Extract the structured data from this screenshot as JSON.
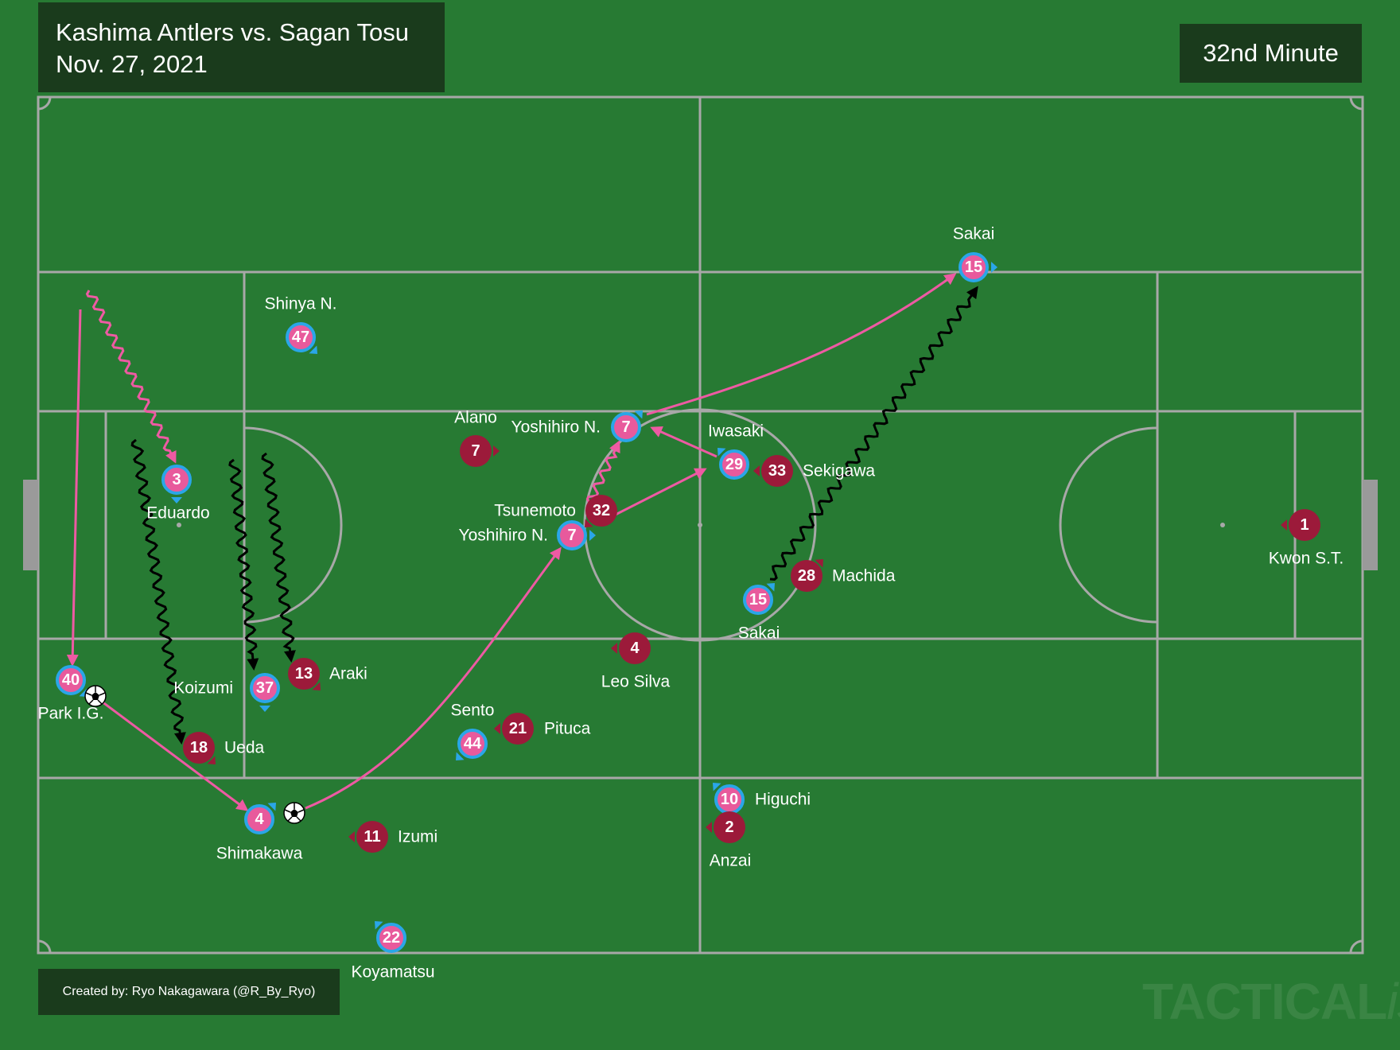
{
  "header": {
    "match": "Kashima Antlers vs. Sagan Tosu",
    "date": "Nov. 27, 2021",
    "minute": "32nd Minute"
  },
  "footer": {
    "credit": "Created by: Ryo Nakagawara (@R_By_Ryo)",
    "watermark_main": "TACTICAL",
    "watermark_italic": "ista"
  },
  "colors": {
    "pitch": "#277a33",
    "lines": "#a8a8a8",
    "home_fill": "#e85a9c",
    "home_ring": "#2aa6e8",
    "away_fill": "#9c1a3a",
    "pass_arrow": "#ee5aa3",
    "run_arrow": "#000000"
  },
  "players": [
    {
      "id": "sagan-40",
      "team": "home",
      "number": "40",
      "name": "Park I.G."
    },
    {
      "id": "sagan-3",
      "team": "home",
      "number": "3",
      "name": "Eduardo"
    },
    {
      "id": "sagan-47",
      "team": "home",
      "number": "47",
      "name": "Shinya N."
    },
    {
      "id": "sagan-37",
      "team": "home",
      "number": "37",
      "name": "Koizumi"
    },
    {
      "id": "sagan-4",
      "team": "home",
      "number": "4",
      "name": "Shimakawa"
    },
    {
      "id": "sagan-44",
      "team": "home",
      "number": "44",
      "name": "Sento"
    },
    {
      "id": "sagan-22",
      "team": "home",
      "number": "22",
      "name": "Koyamatsu"
    },
    {
      "id": "sagan-7a",
      "team": "home",
      "number": "7",
      "name": "Yoshihiro N."
    },
    {
      "id": "sagan-7b",
      "team": "home",
      "number": "7",
      "name": "Yoshihiro N."
    },
    {
      "id": "sagan-29",
      "team": "home",
      "number": "29",
      "name": "Iwasaki"
    },
    {
      "id": "sagan-15a",
      "team": "home",
      "number": "15",
      "name": "Sakai"
    },
    {
      "id": "sagan-15b",
      "team": "home",
      "number": "15",
      "name": "Sakai"
    },
    {
      "id": "sagan-10",
      "team": "home",
      "number": "10",
      "name": "Higuchi"
    },
    {
      "id": "kashima-18",
      "team": "away",
      "number": "18",
      "name": "Ueda"
    },
    {
      "id": "kashima-13",
      "team": "away",
      "number": "13",
      "name": "Araki"
    },
    {
      "id": "kashima-11",
      "team": "away",
      "number": "11",
      "name": "Izumi"
    },
    {
      "id": "kashima-21",
      "team": "away",
      "number": "21",
      "name": "Pituca"
    },
    {
      "id": "kashima-7",
      "team": "away",
      "number": "7",
      "name": "Alano"
    },
    {
      "id": "kashima-32",
      "team": "away",
      "number": "32",
      "name": "Tsunemoto"
    },
    {
      "id": "kashima-4",
      "team": "away",
      "number": "4",
      "name": "Leo Silva"
    },
    {
      "id": "kashima-33",
      "team": "away",
      "number": "33",
      "name": "Sekigawa"
    },
    {
      "id": "kashima-28",
      "team": "away",
      "number": "28",
      "name": "Machida"
    },
    {
      "id": "kashima-2",
      "team": "away",
      "number": "2",
      "name": "Anzai"
    },
    {
      "id": "kashima-1",
      "team": "away",
      "number": "1",
      "name": "Kwon S.T."
    }
  ]
}
